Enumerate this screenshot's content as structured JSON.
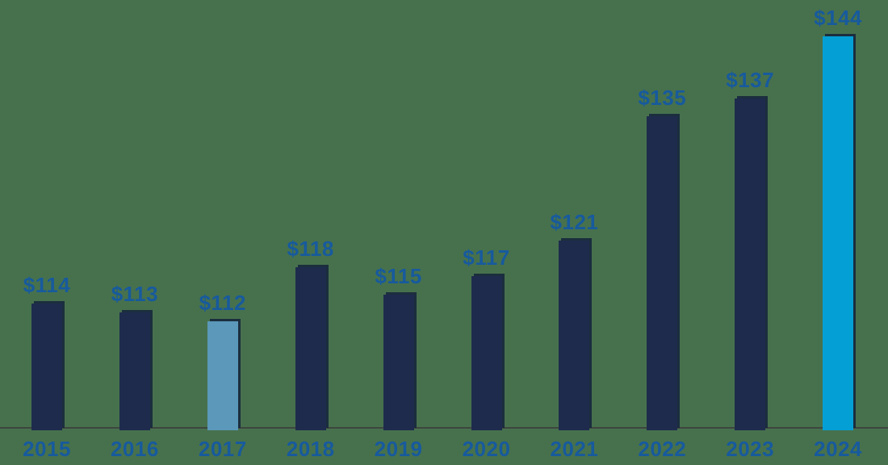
{
  "background_color": "#47714d",
  "chart_data": {
    "type": "bar",
    "title": "",
    "xlabel": "",
    "ylabel": "",
    "categories": [
      "2015",
      "2016",
      "2017",
      "2018",
      "2019",
      "2020",
      "2021",
      "2022",
      "2023",
      "2024"
    ],
    "values": [
      114,
      113,
      112,
      118,
      115,
      117,
      121,
      135,
      137,
      144
    ],
    "value_labels": [
      "$114",
      "$113",
      "$112",
      "$118",
      "$115",
      "$117",
      "$121",
      "$135",
      "$137",
      "$144"
    ],
    "value_prefix": "$",
    "bar_colors": [
      "#1e2b4d",
      "#1e2b4d",
      "#5b98ba",
      "#1e2b4d",
      "#1e2b4d",
      "#1e2b4d",
      "#1e2b4d",
      "#1e2b4d",
      "#1e2b4d",
      "#04a0d5"
    ],
    "highlight_bars": {
      "2017": "#5b98ba",
      "2024": "#04a0d5"
    },
    "default_bar_color": "#1e2b4d",
    "label_color": "#175a9d",
    "axis_line_color": "#3e463f",
    "ylim": [
      100,
      145
    ],
    "grid": false,
    "legend": false,
    "y_axis_visible": false,
    "data_labels_position": "above-bars"
  }
}
